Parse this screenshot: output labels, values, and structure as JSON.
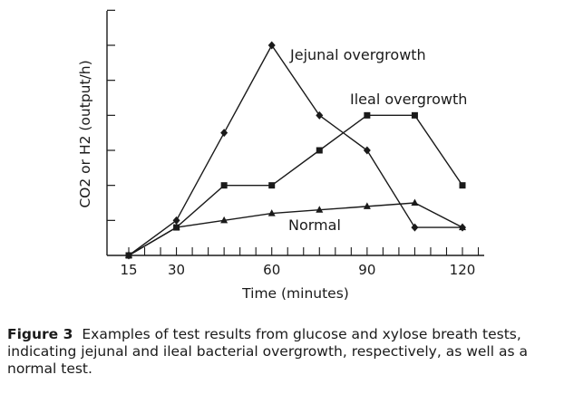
{
  "chart_data": {
    "type": "line",
    "x": [
      15,
      30,
      45,
      60,
      75,
      90,
      105,
      120
    ],
    "xlabel": "Time (minutes)",
    "ylabel": "CO2 or H2 (output/h)",
    "xticklabels": [
      "15",
      "30",
      "60",
      "90",
      "120"
    ],
    "xlim": [
      15,
      120
    ],
    "ylim": [
      0,
      7
    ],
    "y_tick_labels_shown": false,
    "grid": false,
    "legend": "none (series labelled inline)",
    "series": [
      {
        "name": "Jejunal overgrowth",
        "marker": "diamond",
        "x": [
          15,
          30,
          45,
          60,
          75,
          90,
          105,
          120
        ],
        "values": [
          0,
          1.0,
          3.5,
          6.0,
          4.0,
          3.0,
          0.8,
          0.8
        ]
      },
      {
        "name": "Ileal overgrowth",
        "marker": "square",
        "x": [
          15,
          30,
          45,
          60,
          75,
          90,
          105,
          120
        ],
        "values": [
          0,
          0.8,
          2.0,
          2.0,
          3.0,
          4.0,
          4.0,
          2.0
        ]
      },
      {
        "name": "Normal",
        "marker": "triangle",
        "x": [
          15,
          30,
          45,
          60,
          75,
          90,
          105,
          120
        ],
        "values": [
          0,
          0.8,
          1.0,
          1.2,
          1.3,
          1.4,
          1.5,
          0.8
        ]
      }
    ],
    "colors": {
      "line": "#1a1a1a",
      "background": "#ffffff"
    }
  },
  "caption": {
    "label": "Figure 3",
    "text": "Examples of test results from glucose and xylose breath tests, indicating jejunal and ileal bacterial overgrowth, respectively, as well as a normal test."
  }
}
